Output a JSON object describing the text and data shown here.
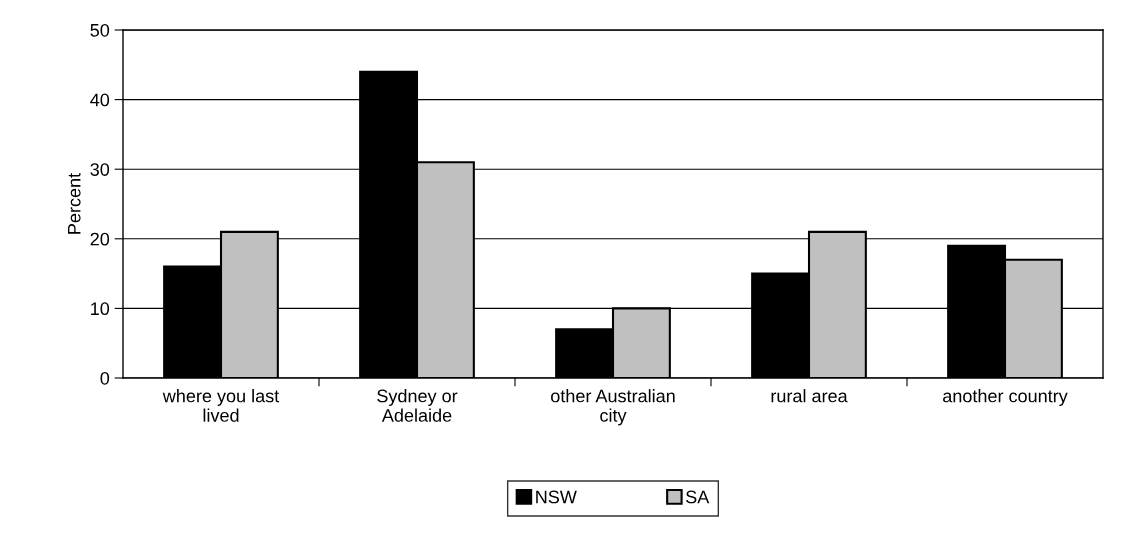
{
  "chart_data": {
    "type": "bar",
    "ylabel": "Percent",
    "categories": [
      "where you last lived",
      "Sydney or Adelaide",
      "other Australian city",
      "rural area",
      "another country"
    ],
    "series": [
      {
        "name": "NSW",
        "color": "#000000",
        "values": [
          16,
          44,
          7,
          15,
          19
        ]
      },
      {
        "name": "SA",
        "color": "#c0c0c0",
        "values": [
          21,
          31,
          10,
          21,
          17
        ]
      }
    ],
    "ylim": [
      0,
      50
    ],
    "yticks": [
      0,
      10,
      20,
      30,
      40,
      50
    ],
    "grid": "y",
    "legend": "bottom"
  }
}
